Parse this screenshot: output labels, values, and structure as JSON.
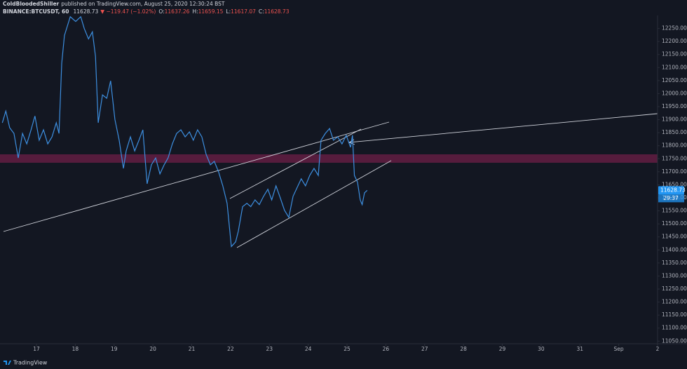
{
  "chart_data": {
    "type": "line",
    "author": "ColdBloodedShiller",
    "subtitle": "published on TradingView.com, August 25, 2020 12:30:24 BST",
    "symbol": "BINANCE:BTCUSDT, 60",
    "last": 11628.73,
    "change": "▼ −119.47 (−1.02%)",
    "ohlc": [
      {
        "label": "O:",
        "value": 11637.26
      },
      {
        "label": "H:",
        "value": 11659.15
      },
      {
        "label": "L:",
        "value": 11617.07
      },
      {
        "label": "C:",
        "value": 11628.73
      }
    ],
    "countdown": "29:37",
    "brand": "TradingView",
    "color": "#3d8fe0",
    "grid": false,
    "x": [
      16.12,
      16.21,
      16.31,
      16.42,
      16.53,
      16.64,
      16.75,
      16.86,
      16.96,
      17.07,
      17.18,
      17.29,
      17.4,
      17.51,
      17.58,
      17.65,
      17.72,
      17.87,
      18.01,
      18.14,
      18.23,
      18.34,
      18.44,
      18.52,
      18.59,
      18.7,
      18.81,
      18.91,
      19.02,
      19.13,
      19.24,
      19.31,
      19.42,
      19.53,
      19.64,
      19.74,
      19.85,
      19.96,
      20.07,
      20.18,
      20.29,
      20.39,
      20.5,
      20.61,
      20.72,
      20.83,
      20.94,
      21.04,
      21.15,
      21.26,
      21.37,
      21.48,
      21.58,
      21.69,
      21.8,
      21.91,
      22.02,
      22.13,
      22.2,
      22.31,
      22.42,
      22.52,
      22.63,
      22.74,
      22.85,
      22.96,
      23.06,
      23.17,
      23.28,
      23.39,
      23.5,
      23.61,
      23.71,
      23.82,
      23.93,
      24.04,
      24.15,
      24.26,
      24.33,
      24.44,
      24.55,
      24.65,
      24.76,
      24.87,
      24.98,
      25.09,
      25.14,
      25.19,
      25.27,
      25.34,
      25.39,
      25.45,
      25.52
    ],
    "values": [
      11888,
      11933,
      11869,
      11847,
      11753,
      11847,
      11807,
      11861,
      11914,
      11821,
      11861,
      11807,
      11834,
      11888,
      11847,
      12116,
      12223,
      12295,
      12277,
      12295,
      12250,
      12210,
      12237,
      12143,
      11888,
      11995,
      11982,
      12049,
      11901,
      11821,
      11713,
      11780,
      11834,
      11780,
      11821,
      11861,
      11654,
      11727,
      11753,
      11692,
      11727,
      11753,
      11807,
      11847,
      11861,
      11834,
      11853,
      11821,
      11861,
      11834,
      11767,
      11727,
      11740,
      11700,
      11646,
      11579,
      11413,
      11431,
      11472,
      11566,
      11579,
      11566,
      11592,
      11574,
      11606,
      11633,
      11592,
      11646,
      11600,
      11552,
      11525,
      11606,
      11638,
      11673,
      11646,
      11686,
      11713,
      11686,
      11821,
      11847,
      11866,
      11821,
      11834,
      11807,
      11840,
      11794,
      11840,
      11686,
      11660,
      11592,
      11574,
      11619,
      11628.73
    ],
    "xlim": [
      16.06,
      33
    ],
    "xticks": [
      17,
      18,
      19,
      20,
      21,
      22,
      23,
      24,
      25,
      26,
      27,
      28,
      29,
      30,
      31,
      {
        "value": 32,
        "label": "Sep"
      },
      {
        "value": 33,
        "label": "2"
      }
    ],
    "ylim": [
      11040,
      12300
    ],
    "yticks": [
      {
        "value": 11050,
        "label": "11050.00"
      },
      {
        "value": 11100,
        "label": "11100.00"
      },
      {
        "value": 11150,
        "label": "11150.00"
      },
      {
        "value": 11200,
        "label": "11200.00"
      },
      {
        "value": 11250,
        "label": "11250.00"
      },
      {
        "value": 11300,
        "label": "11300.00"
      },
      {
        "value": 11350,
        "label": "11350.00"
      },
      {
        "value": 11400,
        "label": "11400.00"
      },
      {
        "value": 11450,
        "label": "11450.00"
      },
      {
        "value": 11500,
        "label": "11500.00"
      },
      {
        "value": 11550,
        "label": "11550.00"
      },
      {
        "value": 11600,
        "label": "11600.00"
      },
      {
        "value": 11650,
        "label": "11650.00"
      },
      {
        "value": 11700,
        "label": "11700.00"
      },
      {
        "value": 11750,
        "label": "11750.00"
      },
      {
        "value": 11800,
        "label": "11800.00"
      },
      {
        "value": 11850,
        "label": "11850.00"
      },
      {
        "value": 11900,
        "label": "11900.00"
      },
      {
        "value": 11950,
        "label": "11950.00"
      },
      {
        "value": 12000,
        "label": "12000.00"
      },
      {
        "value": 12050,
        "label": "12050.00"
      },
      {
        "value": 12100,
        "label": "12100.00"
      },
      {
        "value": 12150,
        "label": "12150.00"
      },
      {
        "value": 12200,
        "label": "12200.00"
      },
      {
        "value": 12250,
        "label": "12250.00"
      }
    ]
  }
}
